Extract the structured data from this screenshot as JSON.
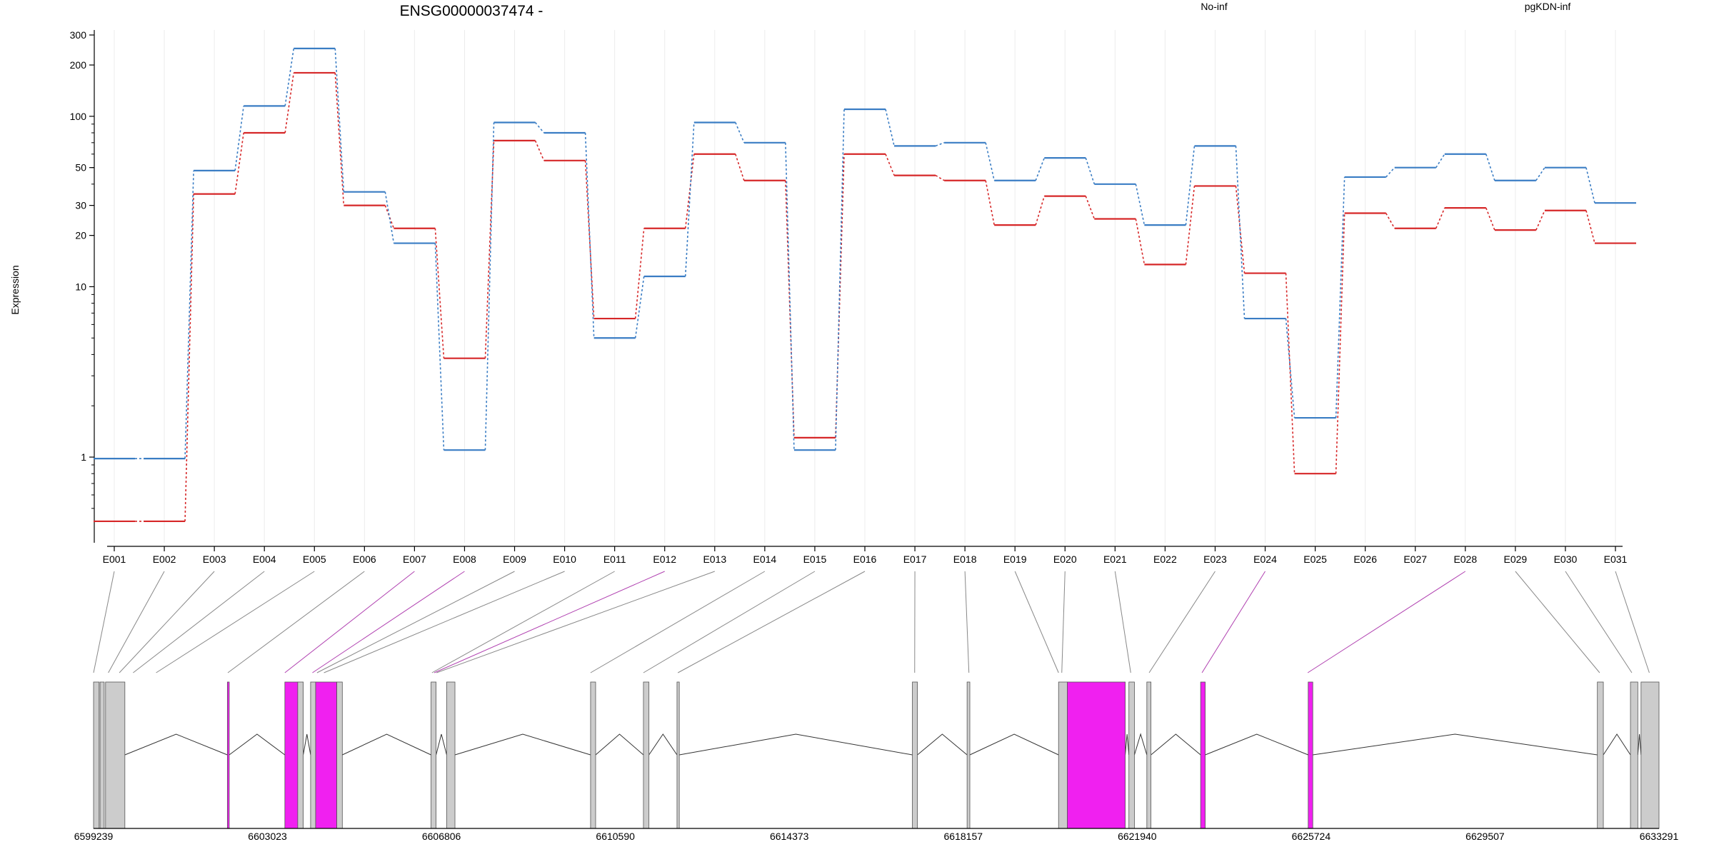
{
  "chart_data": {
    "type": "line",
    "title": "ENSG00000037474 -",
    "ylabel": "Expression",
    "yscale": "log",
    "ylim": [
      0.4,
      300
    ],
    "y_ticks": [
      {
        "v": 300,
        "label": "300"
      },
      {
        "v": 200,
        "label": "200"
      },
      {
        "v": 100,
        "label": "100"
      },
      {
        "v": 50,
        "label": "50"
      },
      {
        "v": 30,
        "label": "30"
      },
      {
        "v": 20,
        "label": "20"
      },
      {
        "v": 10,
        "label": "10"
      },
      {
        "v": 1,
        "label": "1"
      }
    ],
    "categories": [
      "E001",
      "E002",
      "E003",
      "E004",
      "E005",
      "E006",
      "E007",
      "E008",
      "E009",
      "E010",
      "E011",
      "E012",
      "E013",
      "E014",
      "E015",
      "E016",
      "E017",
      "E018",
      "E019",
      "E020",
      "E021",
      "E022",
      "E023",
      "E024",
      "E025",
      "E026",
      "E027",
      "E028",
      "E029",
      "E030",
      "E031"
    ],
    "series": [
      {
        "name": "No-inf",
        "color": "#d62728",
        "values": [
          0.42,
          0.42,
          35,
          80,
          180,
          30,
          22,
          3.8,
          72,
          55,
          6.5,
          22,
          60,
          42,
          1.3,
          60,
          45,
          42,
          23,
          34,
          25,
          13.5,
          39,
          12,
          0.8,
          27,
          22,
          29,
          21.5,
          28,
          18
        ]
      },
      {
        "name": "pgKDN-inf",
        "color": "#3a7dc4",
        "values": [
          0.98,
          0.98,
          48,
          115,
          250,
          36,
          18,
          1.1,
          92,
          80,
          5.0,
          11.5,
          92,
          70,
          1.1,
          110,
          67,
          70,
          42,
          57,
          40,
          23,
          67,
          6.5,
          1.7,
          44,
          50,
          60,
          42,
          50,
          31
        ]
      }
    ],
    "legend": "top-right",
    "grid": "vertical",
    "highlighted_exons": [
      "E007",
      "E008",
      "E012",
      "E024",
      "E028"
    ],
    "genomic_axis": {
      "start": 6599239,
      "end": 6633291,
      "ticks": [
        "6599239",
        "6603023",
        "6606806",
        "6610590",
        "6614373",
        "6618157",
        "6621940",
        "6625724",
        "6629507",
        "6633291"
      ]
    },
    "colors": {
      "gene_block": "#cccccc",
      "highlight": "#f020f0",
      "connector": "#888888",
      "highlight_connector": "#b040b0"
    }
  }
}
